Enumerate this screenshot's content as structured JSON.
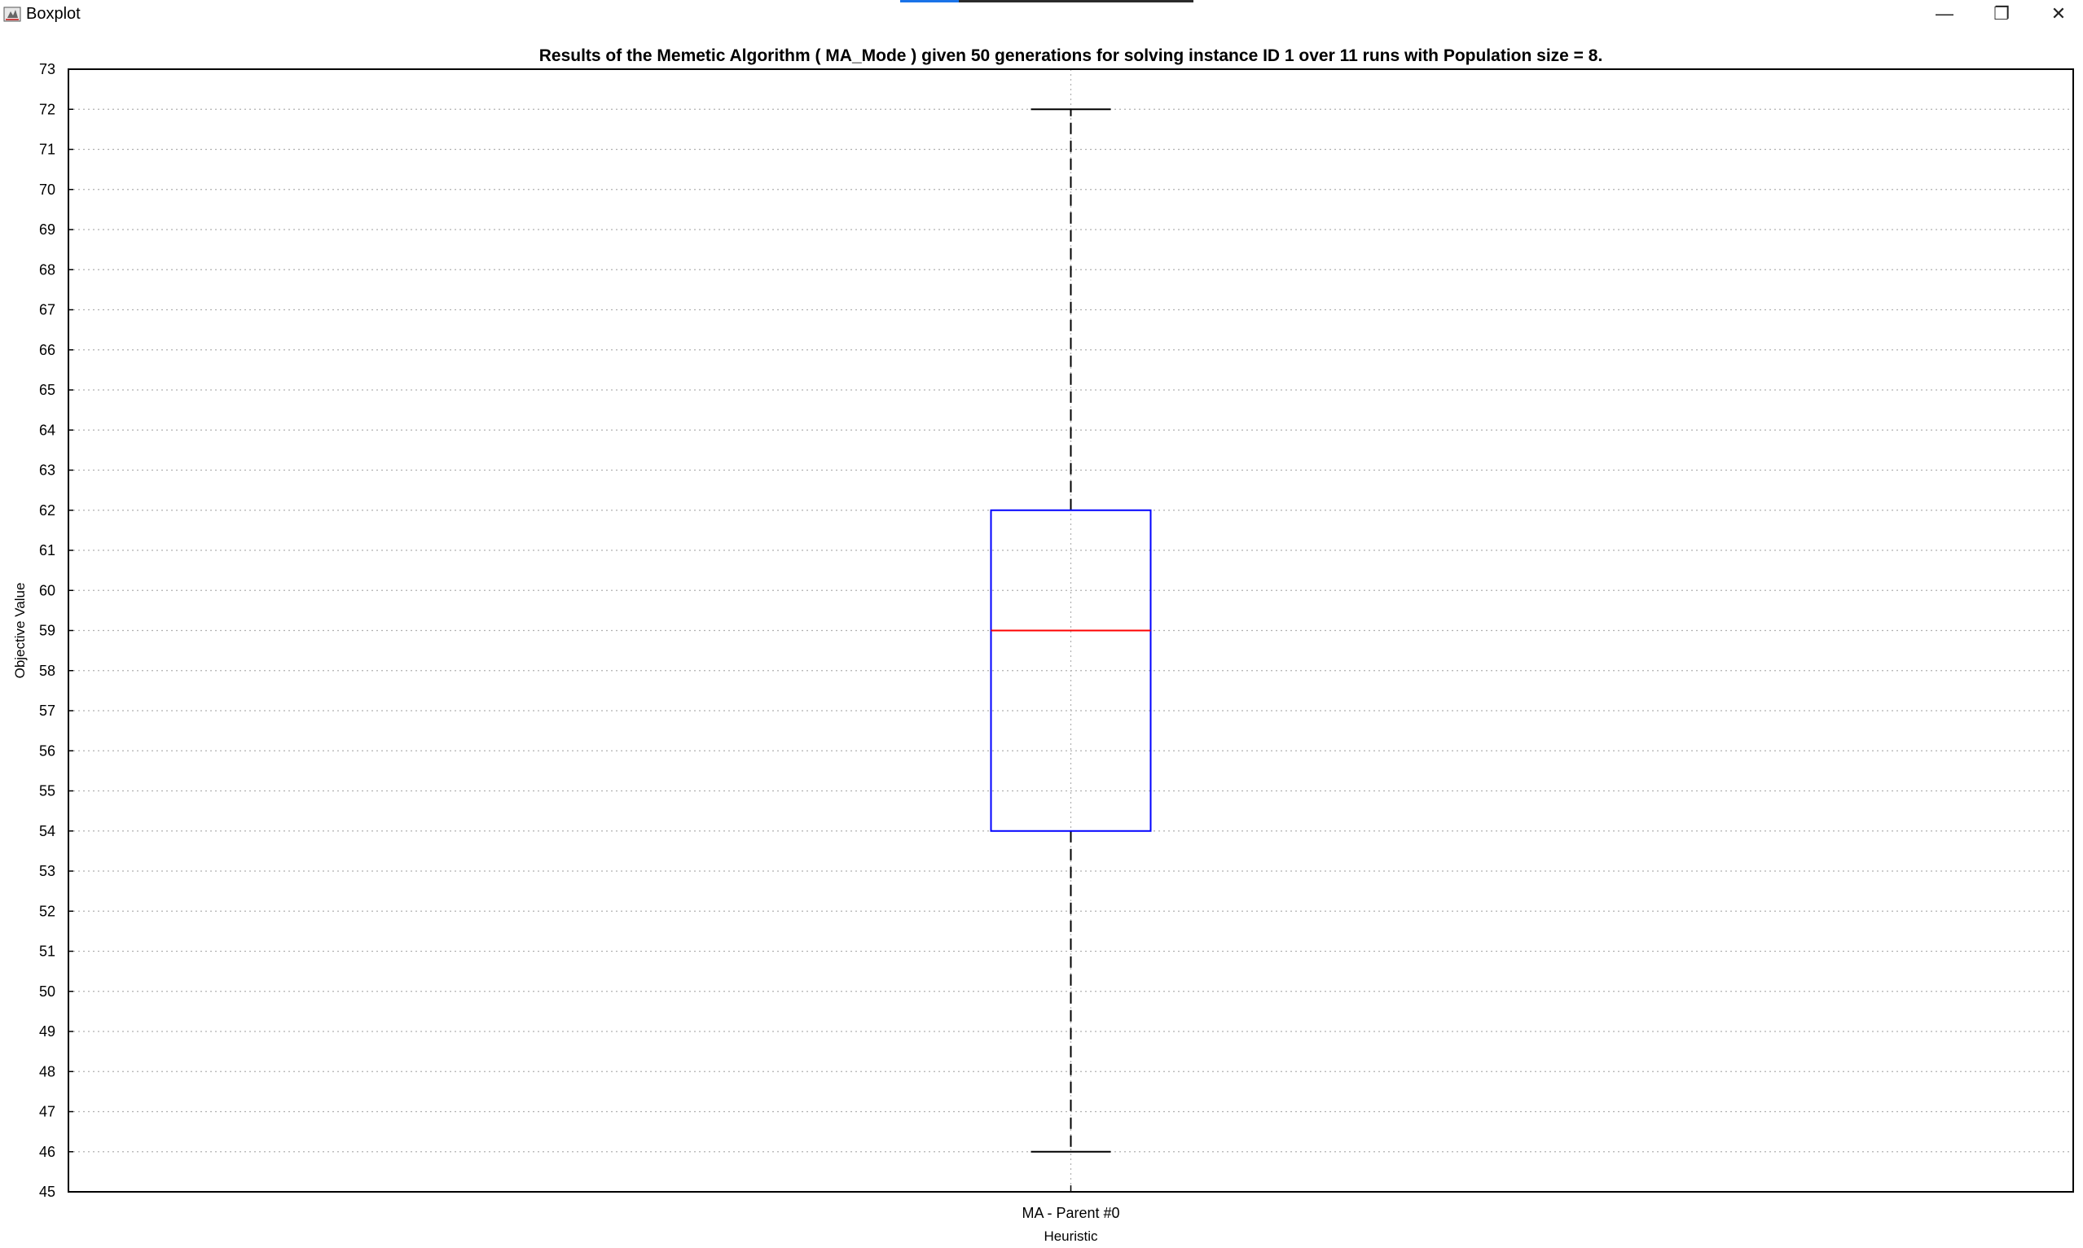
{
  "window": {
    "title": "Boxplot",
    "minimize_glyph": "—",
    "restore_glyph": "❐",
    "close_glyph": "✕",
    "progress": 0.2
  },
  "chart_data": {
    "type": "boxplot",
    "title": "Results of the Memetic Algorithm ( MA_Mode ) given 50 generations for solving instance ID 1 over 11 runs with Population size = 8.",
    "xlabel": "Heuristic",
    "ylabel": "Objective Value",
    "ylim": [
      45,
      73
    ],
    "yticks": [
      45,
      46,
      47,
      48,
      49,
      50,
      51,
      52,
      53,
      54,
      55,
      56,
      57,
      58,
      59,
      60,
      61,
      62,
      63,
      64,
      65,
      66,
      67,
      68,
      69,
      70,
      71,
      72,
      73
    ],
    "grid": true,
    "categories": [
      "MA - Parent #0"
    ],
    "boxes": [
      {
        "category": "MA - Parent #0",
        "min": 46,
        "q1": 54,
        "median": 59,
        "q3": 62,
        "max": 72
      }
    ],
    "colors": {
      "box": "#0000ff",
      "median": "#ff0000",
      "whisker": "#000000",
      "grid": "#b0b0b0"
    }
  }
}
